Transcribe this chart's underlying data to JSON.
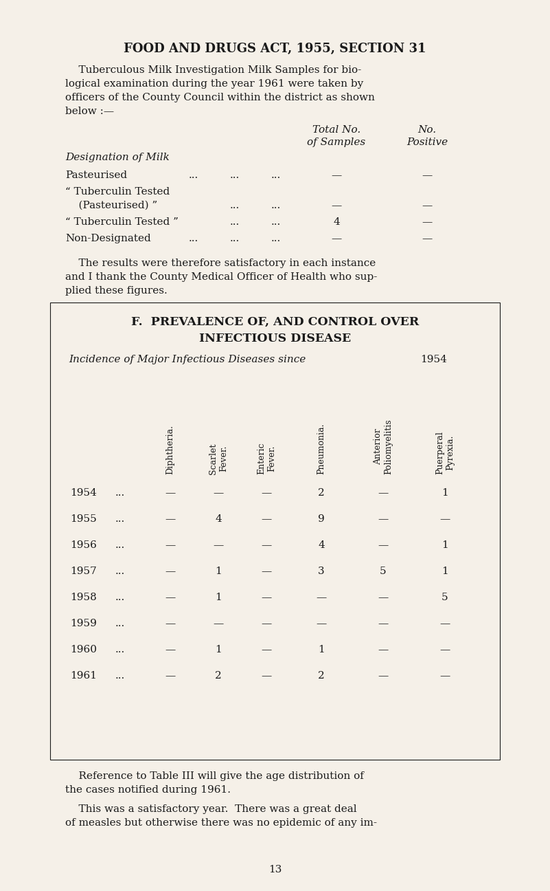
{
  "bg_color": "#f5f0e8",
  "text_color": "#1a1a1a",
  "title": "FOOD AND DRUGS ACT, 1955, SECTION 31",
  "para1_lines": [
    "    Tuberculous Milk Investigation Milk Samples for bio-",
    "logical examination during the year 1961 were taken by",
    "officers of the County Council within the district as shown",
    "below :—"
  ],
  "col_header1_line1": "Total No.",
  "col_header1_line2": "of Samples",
  "col_header2_line1": "No.",
  "col_header2_line2": "Positive",
  "milk_label": "Designation of Milk",
  "milk_row1_name": "Pasteurised",
  "milk_row1_dots": [
    "...",
    "...",
    "..."
  ],
  "milk_row1_samples": "—",
  "milk_row1_positive": "—",
  "milk_row2_name1": "“ Tuberculin Tested",
  "milk_row2_name2": "    (Pasteurised) ”",
  "milk_row2_dots": [
    "...",
    "..."
  ],
  "milk_row2_samples": "—",
  "milk_row2_positive": "—",
  "milk_row3_name": "“ Tuberculin Tested ”",
  "milk_row3_dots": [
    "...",
    "..."
  ],
  "milk_row3_samples": "4",
  "milk_row3_positive": "—",
  "milk_row4_name": "Non-Designated",
  "milk_row4_dots": [
    "...",
    "...",
    "..."
  ],
  "milk_row4_samples": "—",
  "milk_row4_positive": "—",
  "para2_lines": [
    "    The results were therefore satisfactory in each instance",
    "and I thank the County Medical Officer of Health who sup-",
    "plied these figures."
  ],
  "section_f_line1": "F.  PREVALENCE OF, AND CONTROL OVER",
  "section_f_line2": "INFECTIOUS DISEASE",
  "incidence_italic": "Incidence of Major Infectious Diseases since ",
  "incidence_year": "1954",
  "col_headers_disease": [
    "Diphtheria.",
    "Scarlet\nFever.",
    "Enteric\nFever.",
    "Pneumonia.",
    "Anterior\nPoliomyelitis",
    "Puerperal\nPyrexia."
  ],
  "years": [
    "1954",
    "1955",
    "1956",
    "1957",
    "1958",
    "1959",
    "1960",
    "1961"
  ],
  "disease_data": [
    [
      "—",
      "—",
      "—",
      "2",
      "—",
      "1"
    ],
    [
      "—",
      "4",
      "—",
      "9",
      "—",
      "—"
    ],
    [
      "—",
      "—",
      "—",
      "4",
      "—",
      "1"
    ],
    [
      "—",
      "1",
      "—",
      "3",
      "5",
      "1"
    ],
    [
      "—",
      "1",
      "—",
      "—",
      "—",
      "5"
    ],
    [
      "—",
      "—",
      "—",
      "—",
      "—",
      "—"
    ],
    [
      "—",
      "1",
      "—",
      "1",
      "—",
      "—"
    ],
    [
      "—",
      "2",
      "—",
      "2",
      "—",
      "—"
    ]
  ],
  "para3_lines": [
    "    Reference to Table III will give the age distribution of",
    "the cases notified during 1961."
  ],
  "para4_lines": [
    "    This was a satisfactory year.  There was a great deal",
    "of measles but otherwise there was no epidemic of any im-"
  ],
  "page_number": "13"
}
